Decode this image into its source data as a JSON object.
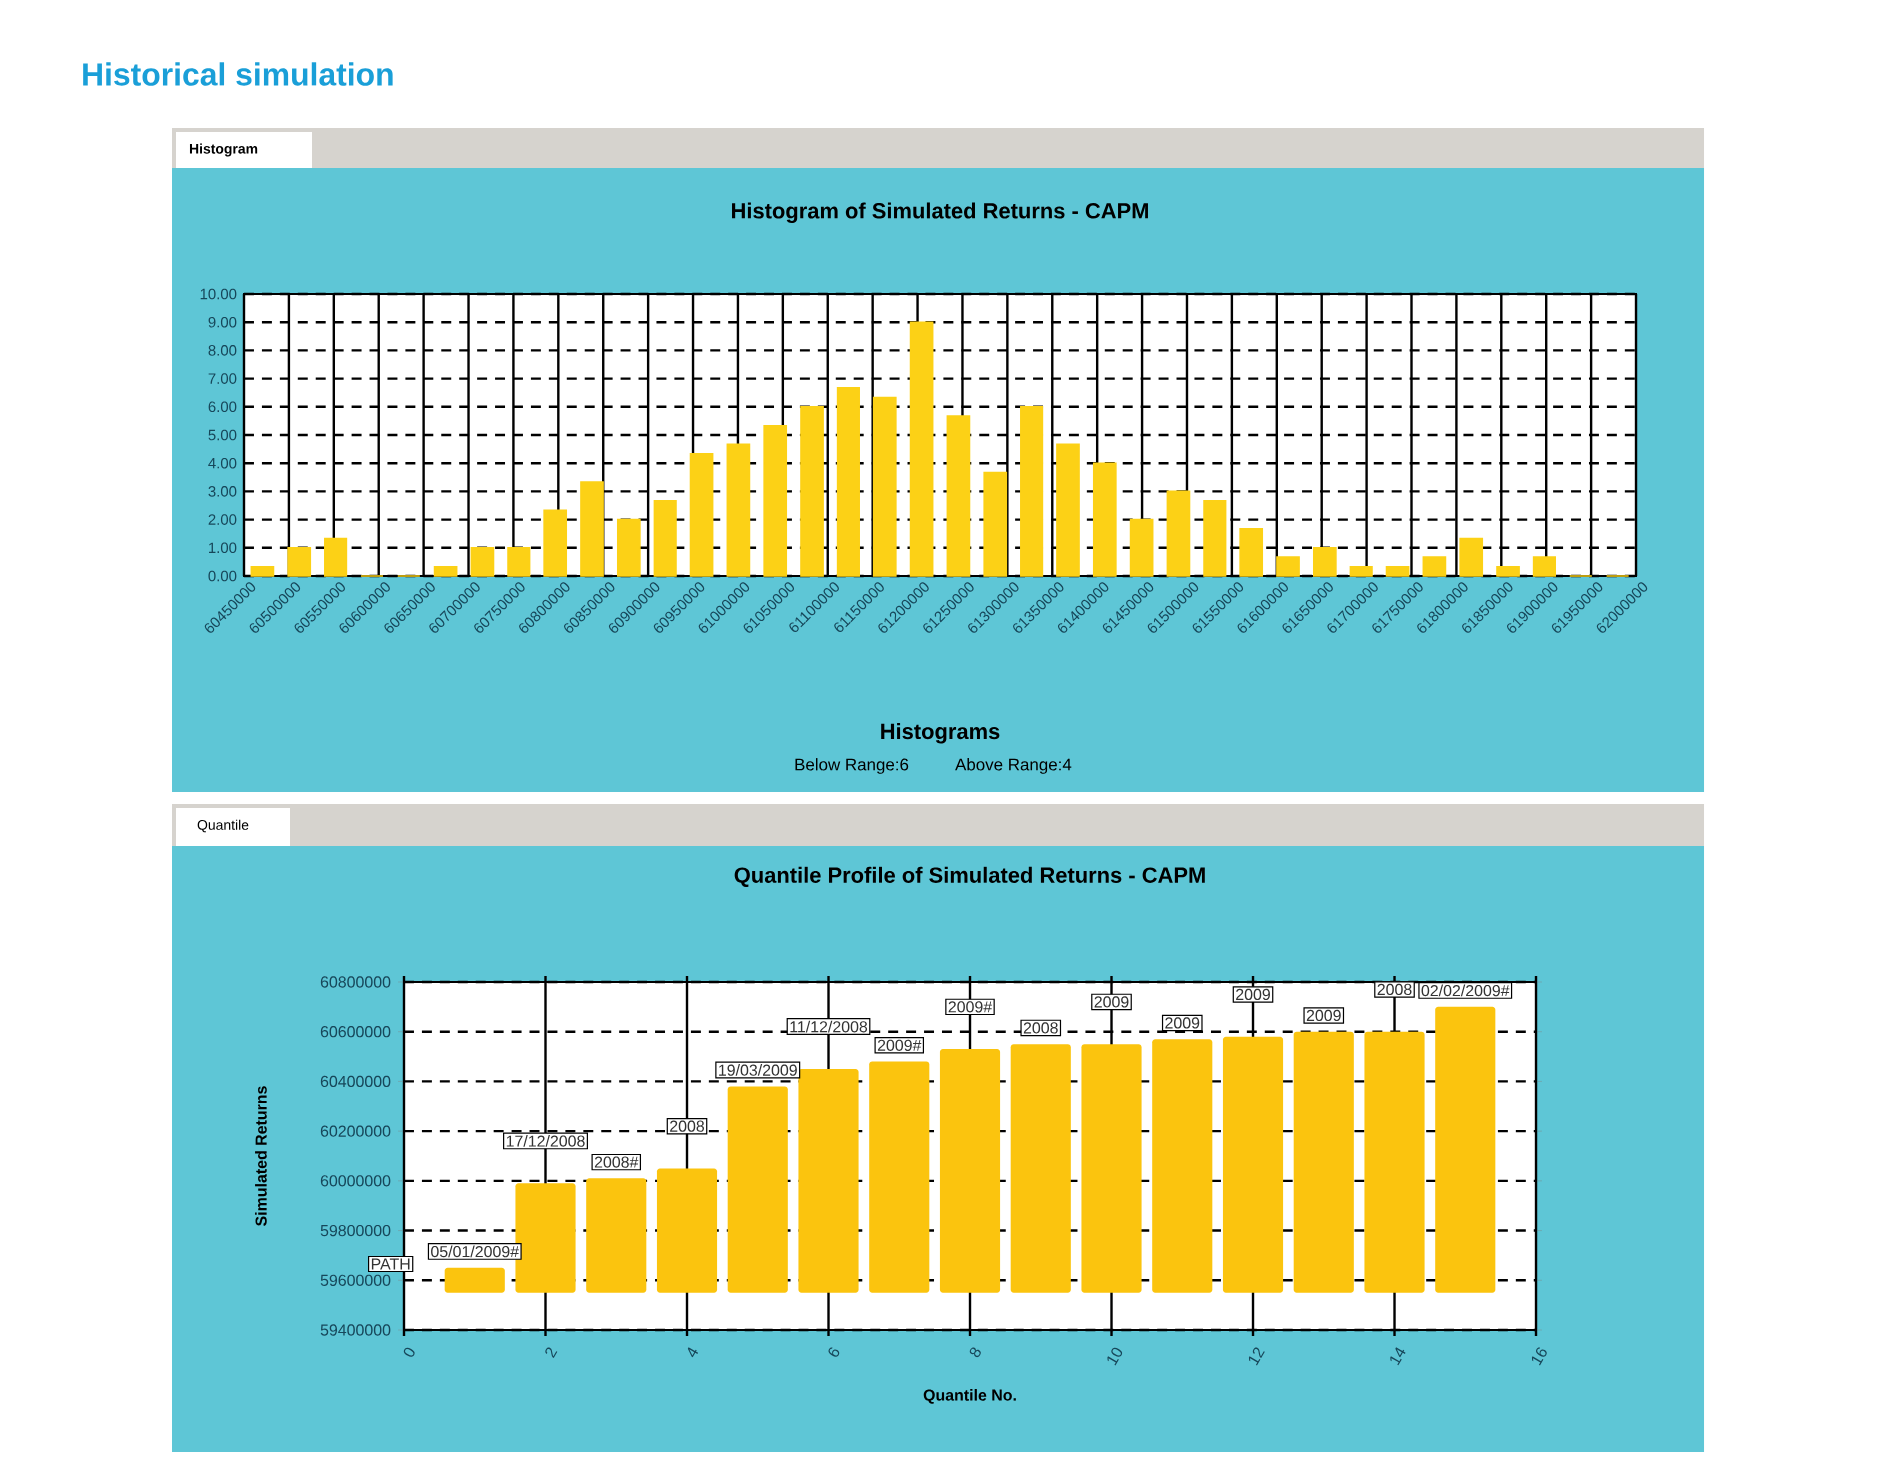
{
  "chart_data": [
    {
      "type": "histogram",
      "title": "Histogram of Simulated Returns - CAPM",
      "xlabel": "Histograms",
      "annotations": [
        "Historical simulation",
        "Histogram",
        "Below Range:6",
        "Above Range:4"
      ],
      "bins": [
        60450000,
        60491000,
        60532000,
        60572000,
        60613000,
        60654000,
        60695000,
        60736000,
        60776000,
        60817000,
        60858000,
        60899000,
        60939000,
        60980000,
        61021000,
        61062000,
        61103000,
        61143000,
        61184000,
        61225000,
        61266000,
        61307000,
        61347000,
        61388000,
        61429000,
        61470000,
        61511000,
        61551000,
        61592000,
        61633000,
        61674000,
        61714000,
        61755000,
        61796000,
        61837000,
        61878000,
        61918000,
        61959000,
        62000000
      ],
      "values": [
        0.33,
        1.0,
        1.33,
        0,
        0,
        0.33,
        1.0,
        1.0,
        2.33,
        3.33,
        2.0,
        2.67,
        4.33,
        4.67,
        5.33,
        6.0,
        6.67,
        6.33,
        9.0,
        5.67,
        3.67,
        6.0,
        4.67,
        4.0,
        2.0,
        3.0,
        2.67,
        1.67,
        0.67,
        1.0,
        0.33,
        0.33,
        0.67,
        1.33,
        0.33,
        0.67,
        0,
        0
      ],
      "color": "#fcd116",
      "xlim": [
        60450000,
        62000000
      ],
      "xticks": [
        60450000,
        60500000,
        60550000,
        60600000,
        60650000,
        60700000,
        60750000,
        60800000,
        60850000,
        60900000,
        60950000,
        61000000,
        61050000,
        61100000,
        61150000,
        61200000,
        61250000,
        61300000,
        61350000,
        61400000,
        61450000,
        61500000,
        61550000,
        61600000,
        61650000,
        61700000,
        61750000,
        61800000,
        61850000,
        61900000,
        61950000,
        62000000
      ],
      "ylim": [
        0,
        10
      ],
      "yticks": [
        {
          "value": 0,
          "label": "0.00"
        },
        {
          "value": 1,
          "label": "1.00"
        },
        {
          "value": 2,
          "label": "2.00"
        },
        {
          "value": 3,
          "label": "3.00"
        },
        {
          "value": 4,
          "label": "4.00"
        },
        {
          "value": 5,
          "label": "5.00"
        },
        {
          "value": 6,
          "label": "6.00"
        },
        {
          "value": 7,
          "label": "7.00"
        },
        {
          "value": 8,
          "label": "8.00"
        },
        {
          "value": 9,
          "label": "9.00"
        },
        {
          "value": 10,
          "label": "10.00"
        }
      ],
      "grid": true
    },
    {
      "type": "bar",
      "title": "Quantile Profile of Simulated Returns - CAPM",
      "xlabel": "Quantile No.",
      "ylabel": "Simulated Returns",
      "annotations": [
        "Quantile",
        "PATH",
        {
          "text": "05/01/2009#",
          "x": 1,
          "y": 59650000
        },
        {
          "text": "17/12/2008",
          "x": 2,
          "y": 59990000
        },
        {
          "text": "2008#",
          "x": 3,
          "y": 60010000
        },
        {
          "text": "2008",
          "x": 4,
          "y": 60050000
        },
        {
          "text": "19/03/2009",
          "x": 5,
          "y": 60380000
        },
        {
          "text": "11/12/2008",
          "x": 6,
          "y": 60450000
        },
        {
          "text": "2009#",
          "x": 7,
          "y": 60480000
        },
        {
          "text": "2009#",
          "x": 8,
          "y": 60530000
        },
        {
          "text": "2008",
          "x": 9,
          "y": 60550000
        },
        {
          "text": "2009",
          "x": 10,
          "y": 60550000
        },
        {
          "text": "2009",
          "x": 11,
          "y": 60570000
        },
        {
          "text": "2009",
          "x": 12,
          "y": 60580000
        },
        {
          "text": "2009",
          "x": 13,
          "y": 60600000
        },
        {
          "text": "2008",
          "x": 14,
          "y": 60600000
        },
        {
          "text": "02/02/2009#",
          "x": 15,
          "y": 60700000
        }
      ],
      "x": [
        1,
        2,
        3,
        4,
        5,
        6,
        7,
        8,
        9,
        10,
        11,
        12,
        13,
        14,
        15
      ],
      "base": [
        59550000,
        59550000,
        59550000,
        59550000,
        59550000,
        59550000,
        59550000,
        59550000,
        59550000,
        59550000,
        59550000,
        59550000,
        59550000,
        59550000,
        59550000
      ],
      "values": [
        100000,
        440000,
        460000,
        500000,
        830000,
        900000,
        930000,
        980000,
        1000000,
        1000000,
        1020000,
        1030000,
        1050000,
        1050000,
        1150000
      ],
      "color": "#fbc40e",
      "xlim": [
        0,
        16
      ],
      "xticks": [
        0,
        2,
        4,
        6,
        8,
        10,
        12,
        14,
        16
      ],
      "ylim": [
        59400000,
        60800000
      ],
      "yticks": [
        59400000,
        59600000,
        59800000,
        60000000,
        60200000,
        60400000,
        60600000,
        60800000
      ],
      "grid": true
    }
  ]
}
